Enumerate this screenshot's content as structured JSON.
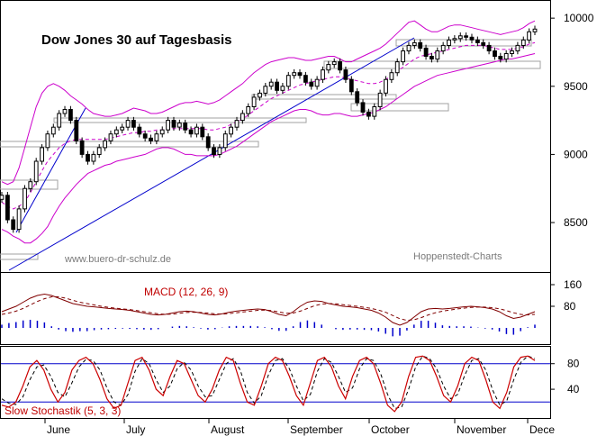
{
  "chart_data": {
    "type": "candlestick",
    "title": "Dow Jones 30 auf Tagesbasis",
    "watermarks": [
      "www.buero-dr-schulz.de",
      "Hoppenstedt-Charts"
    ],
    "months": [
      "June",
      "July",
      "August",
      "September",
      "October",
      "November",
      "Dece"
    ],
    "price_axis": {
      "ticks": [
        8500,
        9000,
        9500,
        10000
      ],
      "range": [
        8150,
        10120
      ]
    },
    "closes": [
      8700,
      8520,
      8450,
      8600,
      8750,
      8800,
      8950,
      9050,
      9150,
      9200,
      9300,
      9330,
      9250,
      9100,
      9000,
      8950,
      9000,
      9050,
      9100,
      9150,
      9180,
      9200,
      9250,
      9200,
      9150,
      9120,
      9100,
      9150,
      9180,
      9250,
      9200,
      9230,
      9180,
      9150,
      9200,
      9130,
      9050,
      9000,
      9050,
      9150,
      9200,
      9250,
      9300,
      9350,
      9420,
      9450,
      9500,
      9530,
      9470,
      9500,
      9580,
      9600,
      9580,
      9530,
      9500,
      9550,
      9620,
      9660,
      9680,
      9620,
      9550,
      9460,
      9380,
      9310,
      9280,
      9350,
      9450,
      9550,
      9600,
      9680,
      9760,
      9800,
      9820,
      9780,
      9720,
      9700,
      9760,
      9800,
      9840,
      9850,
      9870,
      9860,
      9840,
      9820,
      9800,
      9760,
      9720,
      9700,
      9740,
      9760,
      9800,
      9840,
      9900,
      9920
    ],
    "bollinger": {
      "upper": [
        8800,
        8780,
        8800,
        8900,
        9050,
        9200,
        9350,
        9450,
        9500,
        9520,
        9500,
        9470,
        9430,
        9400,
        9370,
        9330,
        9300,
        9290,
        9280,
        9280,
        9290,
        9300,
        9320,
        9340,
        9330,
        9320,
        9300,
        9300,
        9310,
        9330,
        9350,
        9370,
        9380,
        9380,
        9390,
        9380,
        9370,
        9380,
        9400,
        9430,
        9460,
        9490,
        9520,
        9560,
        9600,
        9630,
        9660,
        9680,
        9690,
        9700,
        9710,
        9710,
        9700,
        9690,
        9690,
        9700,
        9710,
        9720,
        9720,
        9700,
        9680,
        9680,
        9700,
        9720,
        9740,
        9760,
        9780,
        9810,
        9850,
        9890,
        9930,
        9970,
        9980,
        9950,
        9920,
        9900,
        9900,
        9920,
        9940,
        9950,
        9950,
        9940,
        9930,
        9920,
        9910,
        9900,
        9890,
        9880,
        9890,
        9900,
        9910,
        9930,
        9960,
        9980
      ],
      "middle": [
        8650,
        8620,
        8600,
        8620,
        8650,
        8720,
        8800,
        8880,
        8950,
        9000,
        9050,
        9080,
        9100,
        9110,
        9110,
        9110,
        9110,
        9110,
        9110,
        9120,
        9130,
        9140,
        9150,
        9160,
        9160,
        9170,
        9170,
        9180,
        9180,
        9190,
        9190,
        9190,
        9190,
        9190,
        9190,
        9190,
        9180,
        9180,
        9190,
        9200,
        9220,
        9240,
        9260,
        9290,
        9320,
        9350,
        9380,
        9410,
        9430,
        9450,
        9470,
        9490,
        9510,
        9520,
        9530,
        9540,
        9550,
        9560,
        9570,
        9570,
        9560,
        9550,
        9540,
        9530,
        9520,
        9520,
        9530,
        9550,
        9580,
        9610,
        9640,
        9670,
        9700,
        9720,
        9730,
        9740,
        9750,
        9760,
        9770,
        9780,
        9790,
        9800,
        9800,
        9800,
        9800,
        9790,
        9780,
        9770,
        9770,
        9770,
        9780,
        9790,
        9810,
        9820
      ],
      "lower": [
        8450,
        8430,
        8400,
        8380,
        8350,
        8350,
        8380,
        8420,
        8470,
        8550,
        8620,
        8680,
        8730,
        8780,
        8820,
        8860,
        8880,
        8900,
        8920,
        8930,
        8950,
        8960,
        8970,
        8980,
        8990,
        9000,
        9020,
        9040,
        9050,
        9050,
        9040,
        9020,
        9000,
        9000,
        8990,
        8990,
        8990,
        8990,
        9000,
        9020,
        9040,
        9060,
        9090,
        9120,
        9150,
        9180,
        9210,
        9240,
        9260,
        9280,
        9300,
        9320,
        9330,
        9330,
        9320,
        9300,
        9290,
        9290,
        9300,
        9300,
        9290,
        9280,
        9280,
        9290,
        9300,
        9310,
        9330,
        9350,
        9380,
        9410,
        9440,
        9470,
        9500,
        9520,
        9540,
        9560,
        9580,
        9590,
        9600,
        9610,
        9620,
        9630,
        9640,
        9650,
        9660,
        9670,
        9680,
        9690,
        9700,
        9700,
        9710,
        9720,
        9730,
        9740
      ]
    },
    "macd": {
      "label": "MACD (12, 26, 9)",
      "ticks": [
        80,
        160
      ],
      "range": [
        -60,
        200
      ],
      "line": [
        60,
        70,
        80,
        95,
        110,
        120,
        125,
        120,
        110,
        100,
        90,
        85,
        80,
        78,
        75,
        72,
        70,
        68,
        65,
        60,
        55,
        50,
        48,
        50,
        55,
        60,
        62,
        60,
        55,
        50,
        48,
        52,
        58,
        62,
        65,
        68,
        70,
        68,
        60,
        50,
        45,
        60,
        80,
        95,
        100,
        98,
        90,
        85,
        80,
        78,
        75,
        70,
        65,
        55,
        40,
        20,
        10,
        20,
        40,
        60,
        70,
        72,
        70,
        72,
        75,
        78,
        80,
        78,
        75,
        70,
        60,
        45,
        35,
        40,
        50,
        60
      ],
      "signal": [
        50,
        55,
        62,
        72,
        85,
        98,
        108,
        115,
        115,
        110,
        102,
        95,
        90,
        85,
        80,
        76,
        73,
        70,
        68,
        64,
        60,
        56,
        52,
        50,
        51,
        54,
        57,
        58,
        57,
        55,
        52,
        51,
        53,
        56,
        59,
        62,
        65,
        66,
        64,
        59,
        54,
        55,
        62,
        72,
        82,
        88,
        90,
        89,
        86,
        83,
        80,
        76,
        72,
        66,
        58,
        46,
        34,
        28,
        30,
        38,
        48,
        56,
        62,
        66,
        70,
        73,
        76,
        77,
        77,
        75,
        71,
        64,
        56,
        50,
        48,
        50
      ]
    },
    "stochastic": {
      "label": "Slow Stochastik (5, 3, 3)",
      "ticks": [
        40,
        80
      ],
      "range": [
        -5,
        105
      ],
      "k": [
        15,
        12,
        20,
        45,
        75,
        85,
        70,
        40,
        20,
        35,
        70,
        85,
        90,
        80,
        55,
        25,
        10,
        15,
        50,
        85,
        90,
        70,
        40,
        30,
        60,
        85,
        80,
        55,
        30,
        20,
        40,
        70,
        90,
        85,
        50,
        20,
        15,
        45,
        80,
        90,
        85,
        60,
        30,
        15,
        50,
        85,
        90,
        75,
        45,
        25,
        60,
        85,
        90,
        80,
        50,
        15,
        5,
        20,
        60,
        90,
        92,
        85,
        60,
        30,
        20,
        45,
        80,
        90,
        85,
        55,
        20,
        10,
        35,
        75,
        90,
        92,
        85
      ],
      "d": [
        25,
        18,
        16,
        28,
        55,
        75,
        78,
        60,
        35,
        28,
        50,
        75,
        87,
        85,
        70,
        42,
        20,
        15,
        32,
        68,
        88,
        80,
        55,
        35,
        45,
        72,
        82,
        70,
        45,
        28,
        30,
        55,
        80,
        88,
        70,
        35,
        18,
        30,
        62,
        85,
        88,
        72,
        45,
        22,
        32,
        68,
        88,
        82,
        60,
        35,
        42,
        72,
        88,
        85,
        65,
        32,
        10,
        12,
        40,
        75,
        92,
        88,
        72,
        45,
        25,
        32,
        62,
        85,
        88,
        70,
        38,
        15,
        22,
        55,
        82,
        92,
        88
      ]
    },
    "colors": {
      "candle_up": "#ffffff",
      "candle_down": "#000000",
      "bollinger": "#cc00cc",
      "trendline": "#0000cc",
      "macd_line": "#800000",
      "macd_hist": "#0000cc",
      "stoch_k": "#cc0000",
      "stoch_d": "#000000",
      "stoch_levels": "#0000cc",
      "box": "#a0a0a0"
    }
  }
}
